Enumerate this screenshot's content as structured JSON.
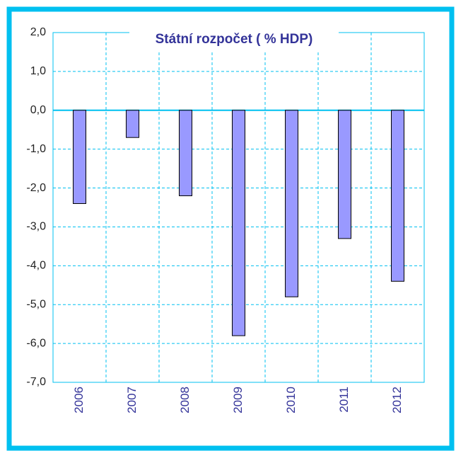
{
  "chart_data": {
    "type": "bar",
    "title": "Státní rozpočet ( % HDP)",
    "categories": [
      "2006",
      "2007",
      "2008",
      "2009",
      "2010",
      "2011",
      "2012"
    ],
    "values": [
      -2.4,
      -0.7,
      -2.2,
      -5.8,
      -4.8,
      -3.3,
      -4.4
    ],
    "color": "#9999ff",
    "ylim": [
      -7,
      2
    ],
    "yticks": [
      {
        "value": 2,
        "label": "2,0"
      },
      {
        "value": 1,
        "label": "1,0"
      },
      {
        "value": 0,
        "label": "0,0"
      },
      {
        "value": -1,
        "label": "-1,0"
      },
      {
        "value": -2,
        "label": "-2,0"
      },
      {
        "value": -3,
        "label": "-3,0"
      },
      {
        "value": -4,
        "label": "-4,0"
      },
      {
        "value": -5,
        "label": "-5,0"
      },
      {
        "value": -6,
        "label": "-6,0"
      },
      {
        "value": -7,
        "label": "-7,0"
      }
    ],
    "grid": true
  }
}
